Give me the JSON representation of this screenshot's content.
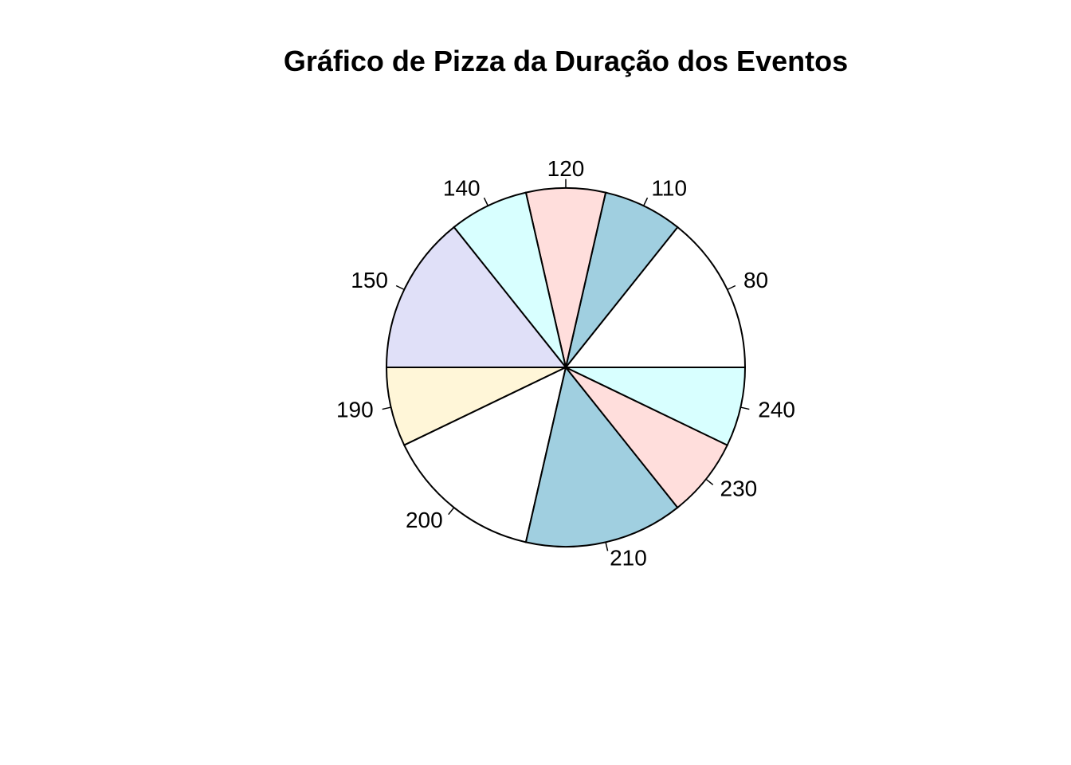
{
  "chart_data": {
    "type": "pie",
    "title": "Gráfico de Pizza da Duração dos Eventos",
    "clockwise": false,
    "start_angle_deg": 0,
    "slices": [
      {
        "label": "80",
        "value": 2,
        "color": "#ffffff"
      },
      {
        "label": "110",
        "value": 1,
        "color": "#a0cfe0"
      },
      {
        "label": "120",
        "value": 1,
        "color": "#ffdedc"
      },
      {
        "label": "140",
        "value": 1,
        "color": "#d8ffff"
      },
      {
        "label": "150",
        "value": 2,
        "color": "#e0e0f8"
      },
      {
        "label": "190",
        "value": 1,
        "color": "#fff6d8"
      },
      {
        "label": "200",
        "value": 2,
        "color": "#ffffff"
      },
      {
        "label": "210",
        "value": 2,
        "color": "#a0cfe0"
      },
      {
        "label": "230",
        "value": 1,
        "color": "#ffdedc"
      },
      {
        "label": "240",
        "value": 1,
        "color": "#d8ffff"
      }
    ],
    "values_note_units": "count"
  }
}
